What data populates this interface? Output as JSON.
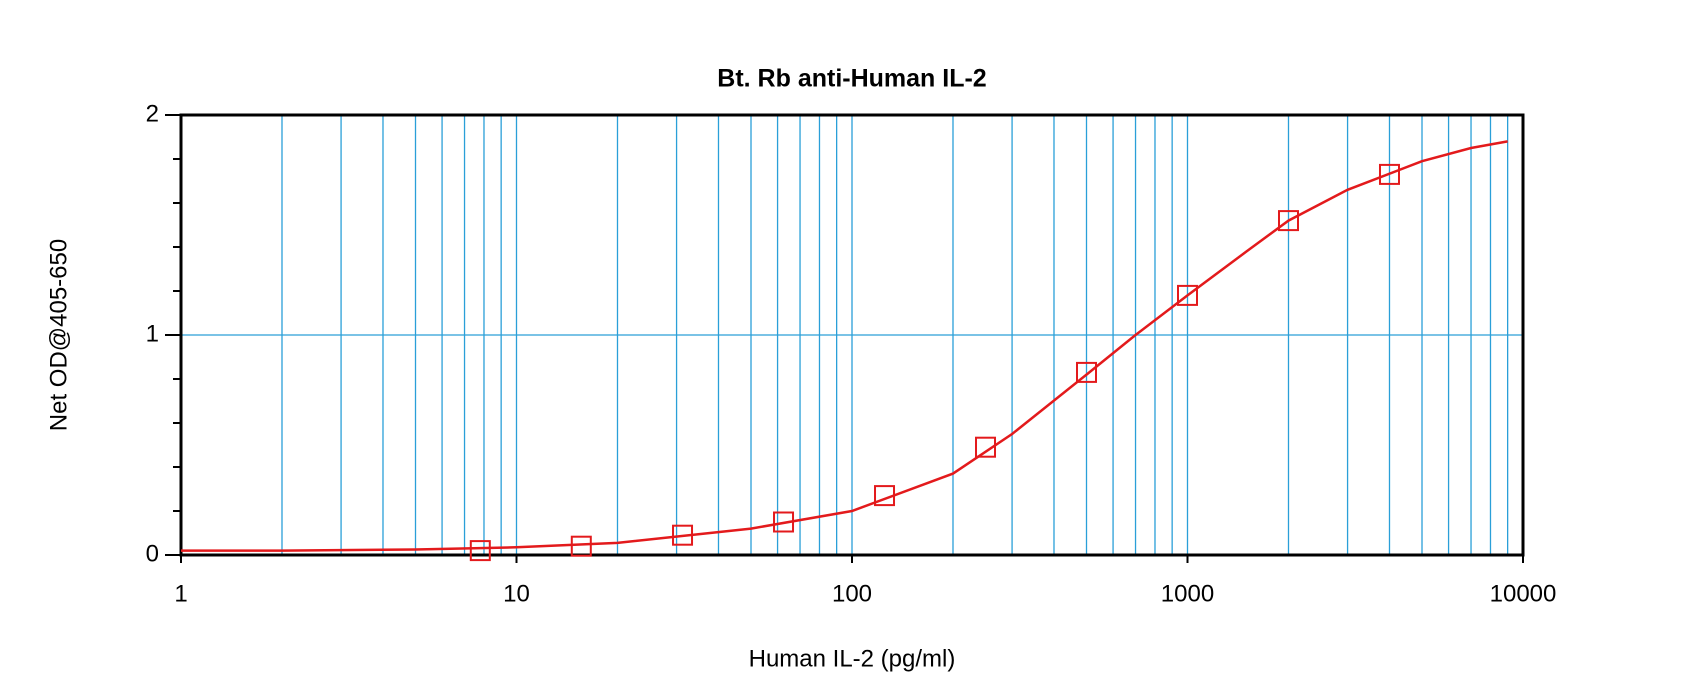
{
  "chart_data": {
    "type": "scatter",
    "title": "Bt. Rb anti-Human IL-2",
    "x_label": "Human IL-2 (pg/ml)",
    "y_label": "Net OD@405-650",
    "x_scale": "log",
    "xlim": [
      1,
      10000
    ],
    "xticks": [
      1,
      10,
      100,
      1000,
      10000
    ],
    "xminorticks": [
      2,
      3,
      4,
      5,
      6,
      7,
      8,
      9,
      20,
      30,
      40,
      50,
      60,
      70,
      80,
      90,
      200,
      300,
      400,
      500,
      600,
      700,
      800,
      900,
      2000,
      3000,
      4000,
      5000,
      6000,
      7000,
      8000,
      9000
    ],
    "ylim": [
      0,
      2
    ],
    "yticks": [
      0,
      1,
      2
    ],
    "yminorticks": [
      0.2,
      0.4,
      0.6,
      0.8,
      1.2,
      1.4,
      1.6,
      1.8
    ],
    "grid": true,
    "grid_color": "#2a9fd8",
    "color": "#e31a1c",
    "marker": "square",
    "x": [
      7.8,
      15.6,
      31.25,
      62.5,
      125,
      250,
      500,
      1000,
      2000,
      4000
    ],
    "values": [
      0.02,
      0.04,
      0.09,
      0.15,
      0.27,
      0.49,
      0.83,
      1.18,
      1.52,
      1.73
    ],
    "fit": {
      "x": [
        1,
        2,
        5,
        10,
        20,
        50,
        100,
        200,
        300,
        500,
        700,
        1000,
        1500,
        2000,
        3000,
        5000,
        7000,
        9000
      ],
      "values": [
        0.02,
        0.02,
        0.025,
        0.035,
        0.055,
        0.12,
        0.2,
        0.37,
        0.55,
        0.82,
        1.0,
        1.18,
        1.38,
        1.52,
        1.66,
        1.79,
        1.85,
        1.88
      ]
    }
  }
}
